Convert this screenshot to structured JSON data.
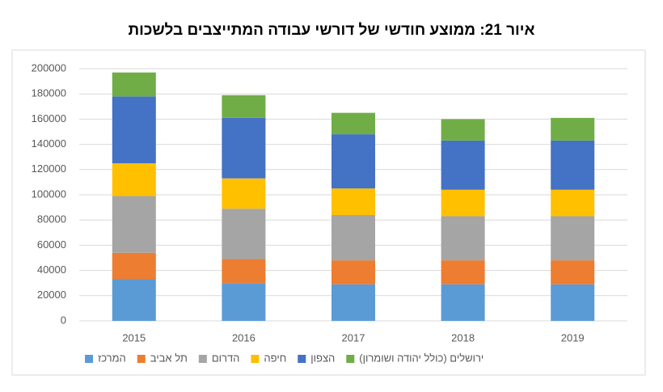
{
  "chart_data": {
    "type": "stacked_bar",
    "title": "איור 21: ממוצע חודשי של דורשי עבודה המתייצבים בלשכות",
    "categories": [
      "2015",
      "2016",
      "2017",
      "2018",
      "2019"
    ],
    "series": [
      {
        "name": "המרכז",
        "color": "#5b9bd5",
        "values": [
          33000,
          30000,
          29000,
          29000,
          29000
        ]
      },
      {
        "name": "תל אביב",
        "color": "#ed7d31",
        "values": [
          21000,
          19000,
          19000,
          19000,
          19000
        ]
      },
      {
        "name": "הדרום",
        "color": "#a5a5a5",
        "values": [
          45000,
          40000,
          36000,
          35000,
          35000
        ]
      },
      {
        "name": "חיפה",
        "color": "#ffc000",
        "values": [
          26000,
          24000,
          21000,
          21000,
          21000
        ]
      },
      {
        "name": "הצפון",
        "color": "#4472c4",
        "values": [
          53000,
          48000,
          43000,
          39000,
          39000
        ]
      },
      {
        "name": "ירושלים (כולל יהודה ושומרון)",
        "color": "#70ad47",
        "values": [
          19000,
          18000,
          17000,
          17000,
          18000
        ]
      }
    ],
    "ylim": [
      0,
      200000
    ],
    "yticks": [
      0,
      20000,
      40000,
      60000,
      80000,
      100000,
      120000,
      140000,
      160000,
      180000,
      200000
    ],
    "grid": true
  }
}
